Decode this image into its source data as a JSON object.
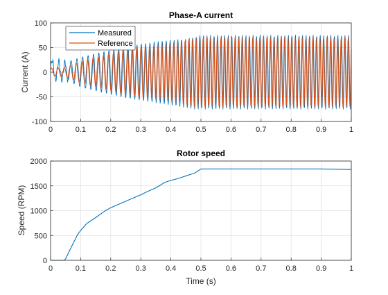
{
  "figure": {
    "background": "#ffffff"
  },
  "chart_data": [
    {
      "type": "line",
      "title": "Phase-A current",
      "xlabel": "",
      "ylabel": "Current (A)",
      "xlim": [
        0,
        1
      ],
      "ylim": [
        -100,
        100
      ],
      "xticks": [
        "0",
        "0.1",
        "0.2",
        "0.3",
        "0.4",
        "0.5",
        "0.6",
        "0.7",
        "0.8",
        "0.9",
        "1"
      ],
      "yticks": [
        "-100",
        "-50",
        "0",
        "50",
        "100"
      ],
      "grid": true,
      "legend": {
        "placement": "top-left"
      },
      "series": [
        {
          "name": "Measured",
          "color": "#0072BD",
          "kind": "oscillating-envelope",
          "envelope": {
            "t": [
              0,
              0.05,
              0.1,
              0.15,
              0.2,
              0.25,
              0.3,
              0.35,
              0.4,
              0.45,
              0.48,
              0.5,
              0.6,
              0.7,
              0.8,
              0.9,
              1.0
            ],
            "upper": [
              25,
              20,
              30,
              38,
              45,
              52,
              57,
              62,
              65,
              68,
              72,
              75,
              75,
              75,
              75,
              75,
              75
            ],
            "lower": [
              -15,
              -15,
              -30,
              -38,
              -45,
              -52,
              -57,
              -62,
              -67,
              -72,
              -75,
              -75,
              -75,
              -75,
              -75,
              -75,
              -75
            ]
          }
        },
        {
          "name": "Reference",
          "color": "#D95319",
          "kind": "oscillating-envelope",
          "envelope": {
            "t": [
              0,
              0.05,
              0.1,
              0.15,
              0.2,
              0.25,
              0.3,
              0.35,
              0.4,
              0.45,
              0.48,
              0.5,
              0.6,
              0.7,
              0.8,
              0.9,
              1.0
            ],
            "upper": [
              8,
              10,
              22,
              30,
              38,
              45,
              50,
              55,
              60,
              65,
              70,
              70,
              70,
              70,
              70,
              70,
              70
            ],
            "lower": [
              -8,
              -10,
              -22,
              -30,
              -38,
              -45,
              -50,
              -55,
              -60,
              -65,
              -70,
              -70,
              -70,
              -70,
              -70,
              -70,
              -70
            ]
          }
        }
      ]
    },
    {
      "type": "line",
      "title": "Rotor speed",
      "xlabel": "Time (s)",
      "ylabel": "Speed (RPM)",
      "xlim": [
        0,
        1
      ],
      "ylim": [
        0,
        2000
      ],
      "xticks": [
        "0",
        "0.1",
        "0.2",
        "0.3",
        "0.4",
        "0.5",
        "0.6",
        "0.7",
        "0.8",
        "0.9",
        "1"
      ],
      "yticks": [
        "0",
        "500",
        "1000",
        "1500",
        "2000"
      ],
      "grid": true,
      "series": [
        {
          "color": "#0072BD",
          "x": [
            0,
            0.045,
            0.05,
            0.07,
            0.09,
            0.1,
            0.12,
            0.15,
            0.18,
            0.2,
            0.25,
            0.3,
            0.32,
            0.35,
            0.38,
            0.4,
            0.42,
            0.45,
            0.48,
            0.5,
            0.55,
            0.6,
            0.7,
            0.8,
            0.9,
            1.0
          ],
          "y": [
            0,
            0,
            30,
            280,
            520,
            600,
            740,
            860,
            990,
            1060,
            1190,
            1320,
            1380,
            1460,
            1570,
            1610,
            1640,
            1700,
            1760,
            1840,
            1840,
            1840,
            1840,
            1840,
            1840,
            1830
          ]
        }
      ]
    }
  ]
}
